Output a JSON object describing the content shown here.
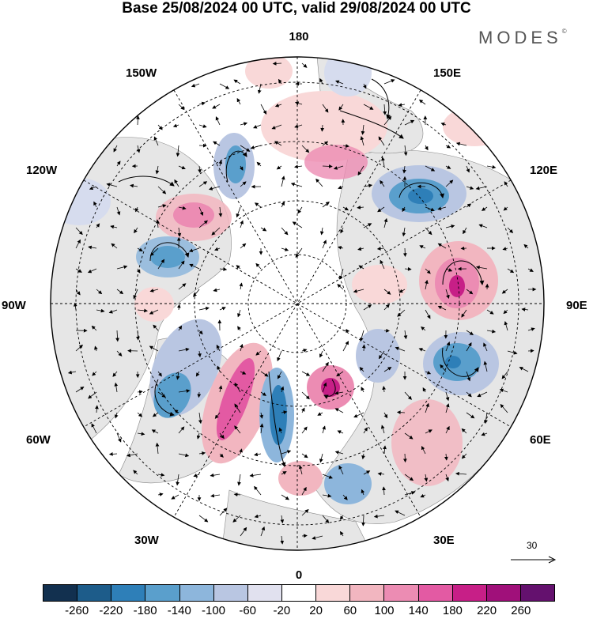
{
  "header": {
    "title": "Base 25/08/2024 00 UTC, valid 29/08/2024 00 UTC",
    "brand": "MODES",
    "brand_mark": "©"
  },
  "map": {
    "projection": "north polar stereographic",
    "longitude_labels": {
      "top": "180",
      "bottom": "0",
      "left": "90W",
      "right": "90E",
      "upper_left_1": "150W",
      "upper_left_2": "120W",
      "lower_left_1": "60W",
      "lower_left_2": "30W",
      "upper_right_1": "150E",
      "upper_right_2": "120E",
      "lower_right_1": "60E",
      "lower_right_2": "30E"
    },
    "colors": {
      "land": "#e8e8e8",
      "ocean": "#ffffff",
      "graticule": "#000000"
    }
  },
  "reference_vector": {
    "label": "30"
  },
  "colorbar": {
    "colors": [
      "#12304f",
      "#1d5c8a",
      "#2e7fb8",
      "#5a9fcc",
      "#8db6dc",
      "#b9c6e2",
      "#e1e1ef",
      "#ffffff",
      "#f9d8d8",
      "#f2b6c0",
      "#ec8cb3",
      "#e35aa3",
      "#c71f87",
      "#a0107a",
      "#64116e"
    ],
    "ticks": [
      "-260",
      "-220",
      "-180",
      "-140",
      "-100",
      "-60",
      "-20",
      "20",
      "60",
      "100",
      "140",
      "180",
      "220",
      "260"
    ]
  }
}
